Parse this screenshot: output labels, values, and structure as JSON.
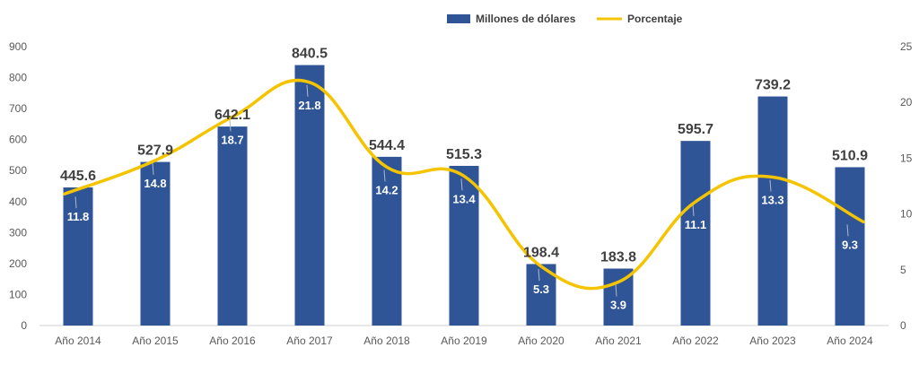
{
  "chart_data": {
    "type": "bar",
    "categories": [
      "Año 2014",
      "Año 2015",
      "Año 2016",
      "Año 2017",
      "Año 2018",
      "Año 2019",
      "Año 2020",
      "Año 2021",
      "Año 2022",
      "Año 2023",
      "Año 2024"
    ],
    "series": [
      {
        "name": "Millones de dólares",
        "type": "bar",
        "axis": "left",
        "color": "#2F5597",
        "values": [
          445.6,
          527.9,
          642.1,
          840.5,
          544.4,
          515.3,
          198.4,
          183.8,
          595.7,
          739.2,
          510.9
        ],
        "labels": [
          "445.6",
          "527.9",
          "642.1",
          "840.5",
          "544.4",
          "515.3",
          "198.4",
          "183.8",
          "595.7",
          "739.2",
          "510.9"
        ]
      },
      {
        "name": "Porcentaje",
        "type": "line",
        "smooth": true,
        "axis": "right",
        "color": "#F5C400",
        "values": [
          11.8,
          14.8,
          18.7,
          21.8,
          14.2,
          13.4,
          5.3,
          3.9,
          11.1,
          13.3,
          9.3
        ],
        "labels": [
          "11.8",
          "14.8",
          "18.7",
          "21.8",
          "14.2",
          "13.4",
          "5.3",
          "3.9",
          "11.1",
          "13.3",
          "9.3"
        ]
      }
    ],
    "y_left": {
      "min": 0,
      "max": 900,
      "step": 100,
      "ticks": [
        "0",
        "100",
        "200",
        "300",
        "400",
        "500",
        "600",
        "700",
        "800",
        "900"
      ]
    },
    "y_right": {
      "min": 0,
      "max": 25,
      "step": 5,
      "ticks": [
        "0",
        "5",
        "10",
        "15",
        "20",
        "25"
      ]
    },
    "title": "",
    "xlabel": "",
    "ylabel": "",
    "grid": false,
    "legend_position": "top-right"
  }
}
